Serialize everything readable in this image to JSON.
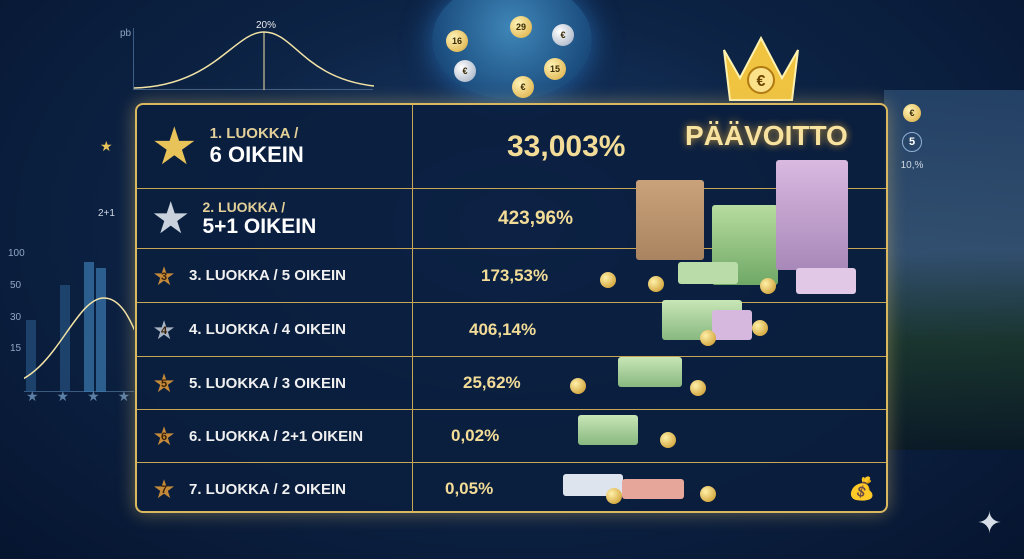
{
  "top_chart": {
    "y_label": "pb",
    "peak_label": "20%"
  },
  "left_chart": {
    "ticks": [
      "100",
      "50",
      "30",
      "15"
    ]
  },
  "left_markers": {
    "combo_label": "2+1"
  },
  "lottery_balls": [
    "16",
    "29",
    "15",
    "€",
    "€",
    "€"
  ],
  "right_markers": {
    "coin": "€",
    "number": "5",
    "percent": "10,%"
  },
  "jackpot_label": "PÄÄVOITTO",
  "crown_symbol": "€",
  "rows": [
    {
      "badge": "",
      "line1": "1. LUOKKA /",
      "line2": "6 OIKEIN",
      "percent": "33,003%"
    },
    {
      "badge": "",
      "line1": "2. LUOKKA /",
      "line2": "5+1 OIKEIN",
      "percent": "423,96%"
    },
    {
      "badge": "3",
      "label": "3. LUOKKA / 5 OIKEIN",
      "percent": "173,53%"
    },
    {
      "badge": "4",
      "label": "4. LUOKKA / 4 OIKEIN",
      "percent": "406,14%"
    },
    {
      "badge": "5",
      "label": "5. LUOKKA / 3 OIKEIN",
      "percent": "25,62%"
    },
    {
      "badge": "6",
      "label": "6. LUOKKA / 2+1 OIKEIN",
      "percent": "0,02%"
    },
    {
      "badge": "7",
      "label": "7. LUOKKA / 2 OIKEIN",
      "percent": "0,05%"
    }
  ],
  "colors": {
    "gold": "#d9b860",
    "navy": "#0d2446",
    "percent": "#f2dc97"
  }
}
